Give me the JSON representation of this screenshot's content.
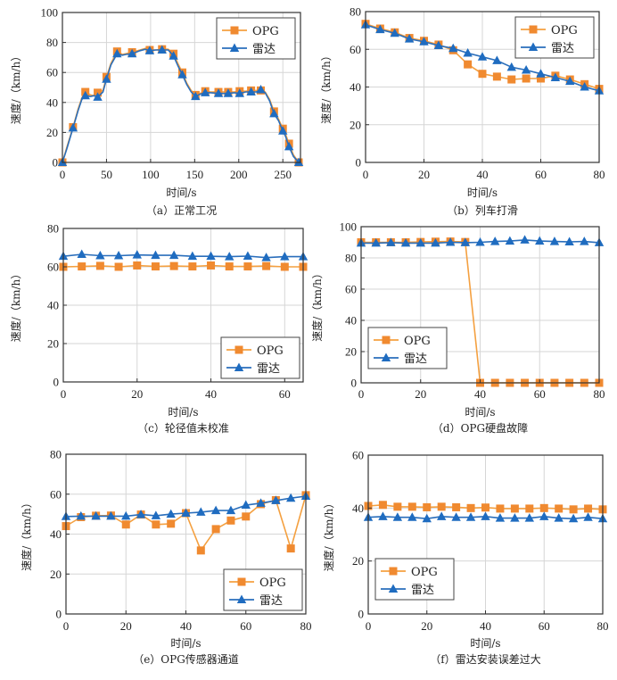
{
  "figure": {
    "series_styles": {
      "OPG": {
        "color": "#f4a040",
        "marker_color": "#f08a30",
        "marker": "square"
      },
      "雷达": {
        "color": "#2a6ebb",
        "marker_color": "#1f6cc0",
        "marker": "triangle"
      }
    },
    "legend_labels": [
      "OPG",
      "雷达"
    ]
  },
  "chart_data": [
    {
      "id": "a",
      "type": "line",
      "caption": "（a）正常工况",
      "xlabel": "时间/s",
      "ylabel": "速度/（km/h）",
      "xlim": [
        0,
        270
      ],
      "ylim": [
        0,
        100
      ],
      "xticks": [
        0,
        50,
        100,
        150,
        200,
        250
      ],
      "yticks": [
        0,
        20,
        40,
        60,
        80,
        100
      ],
      "grid": true,
      "legend": "top-right",
      "series": [
        {
          "name": "OPG",
          "x": [
            0,
            5,
            12,
            18,
            22,
            26,
            32,
            36,
            40,
            46,
            50,
            55,
            62,
            68,
            72,
            79,
            88,
            94,
            99,
            106,
            113,
            120,
            126,
            131,
            136,
            141,
            146,
            151,
            156,
            162,
            168,
            177,
            182,
            188,
            195,
            201,
            208,
            214,
            220,
            225,
            230,
            235,
            240,
            245,
            250,
            253,
            257,
            262,
            268
          ],
          "y": [
            0,
            10,
            23.5,
            36,
            43,
            47,
            45,
            44.5,
            46.5,
            48,
            57,
            66,
            74,
            72,
            72.5,
            73.5,
            75,
            76,
            75,
            75,
            75.5,
            75.5,
            72.5,
            66,
            60,
            53,
            48,
            45,
            46,
            47.5,
            47,
            47,
            47,
            47,
            47,
            47.5,
            47.5,
            48,
            48,
            48,
            47,
            42,
            34,
            29,
            22.5,
            19,
            12.5,
            5,
            0
          ],
          "marker_x": [
            0,
            12,
            26,
            40,
            50,
            62,
            79,
            99,
            113,
            126,
            136,
            151,
            162,
            177,
            188,
            201,
            214,
            225,
            240,
            250,
            257,
            268
          ]
        },
        {
          "name": "雷达",
          "x": [
            0,
            5,
            12,
            18,
            22,
            26,
            32,
            36,
            40,
            46,
            50,
            55,
            62,
            68,
            72,
            79,
            88,
            94,
            99,
            106,
            113,
            120,
            126,
            131,
            136,
            141,
            146,
            151,
            156,
            162,
            168,
            177,
            182,
            188,
            195,
            201,
            208,
            214,
            220,
            225,
            230,
            235,
            240,
            245,
            250,
            253,
            257,
            262,
            268
          ],
          "y": [
            0,
            9,
            23,
            35,
            42,
            44.5,
            44,
            44.5,
            43.5,
            47,
            55.5,
            65,
            72.5,
            71.5,
            72,
            72.5,
            74.5,
            75.5,
            74.5,
            75,
            75,
            75,
            71,
            64.5,
            58.5,
            52,
            47,
            44,
            45.5,
            46.5,
            46.5,
            46,
            46,
            46,
            46.5,
            46,
            47,
            47,
            47,
            48.5,
            46.5,
            41,
            32.5,
            28,
            21,
            17.5,
            10.5,
            4,
            0
          ],
          "marker_x": [
            0,
            12,
            26,
            40,
            50,
            62,
            79,
            99,
            113,
            126,
            136,
            151,
            162,
            177,
            188,
            201,
            214,
            225,
            240,
            250,
            257,
            268
          ]
        }
      ]
    },
    {
      "id": "b",
      "type": "line",
      "caption": "（b）列车打滑",
      "xlabel": "时间/s",
      "ylabel": "速度/（km/h）",
      "xlim": [
        0,
        80
      ],
      "ylim": [
        0,
        80
      ],
      "xticks": [
        0,
        20,
        40,
        60,
        80
      ],
      "yticks": [
        0,
        20,
        40,
        60,
        80
      ],
      "grid": true,
      "legend": "top-right",
      "series": [
        {
          "name": "OPG",
          "x": [
            0,
            5,
            10,
            15,
            20,
            25,
            30,
            35,
            40,
            45,
            50,
            55,
            60,
            65,
            70,
            75,
            80
          ],
          "y": [
            73.5,
            71,
            69,
            66,
            64.5,
            62.5,
            59.5,
            52,
            47,
            45.5,
            44,
            44.5,
            44.5,
            46,
            44,
            41.5,
            39
          ]
        },
        {
          "name": "雷达",
          "x": [
            0,
            5,
            10,
            15,
            20,
            25,
            30,
            35,
            40,
            45,
            50,
            55,
            60,
            65,
            70,
            75,
            80
          ],
          "y": [
            73,
            70.5,
            68.5,
            65.5,
            64,
            62,
            60.5,
            58,
            56,
            54,
            50.5,
            49,
            47,
            45,
            43,
            40,
            38
          ]
        }
      ]
    },
    {
      "id": "c",
      "type": "line",
      "caption": "（c）轮径值未校准",
      "xlabel": "时间/s",
      "ylabel": "速度/（km/h）",
      "xlim": [
        0,
        65
      ],
      "ylim": [
        0,
        80
      ],
      "xticks": [
        0,
        20,
        40,
        60
      ],
      "yticks": [
        0,
        20,
        40,
        60,
        80
      ],
      "grid": true,
      "legend": "bottom-right",
      "series": [
        {
          "name": "OPG",
          "x": [
            0,
            5,
            10,
            15,
            20,
            25,
            30,
            35,
            40,
            45,
            50,
            55,
            60,
            65
          ],
          "y": [
            60,
            60.2,
            60.5,
            60,
            60.7,
            60.2,
            60.4,
            60.2,
            60.7,
            60.2,
            60.2,
            60.4,
            60,
            60
          ]
        },
        {
          "name": "雷达",
          "x": [
            0,
            5,
            10,
            15,
            20,
            25,
            30,
            35,
            40,
            45,
            50,
            55,
            60,
            65
          ],
          "y": [
            65.5,
            66.5,
            65.8,
            65.8,
            66.2,
            66,
            66,
            65.5,
            65.5,
            65.3,
            65.6,
            64.8,
            65.3,
            65.3
          ]
        }
      ]
    },
    {
      "id": "d",
      "type": "line",
      "caption": "（d）OPG硬盘故障",
      "xlabel": "时间/s",
      "ylabel": "速度/（km/h）",
      "xlim": [
        0,
        80
      ],
      "ylim": [
        0,
        100
      ],
      "xticks": [
        0,
        20,
        40,
        60,
        80
      ],
      "yticks": [
        0,
        20,
        40,
        60,
        80,
        100
      ],
      "grid": true,
      "legend": "bottom-left",
      "series": [
        {
          "name": "OPG",
          "x": [
            0,
            5,
            10,
            15,
            20,
            25,
            30,
            35,
            40,
            45,
            50,
            55,
            60,
            65,
            70,
            75,
            80
          ],
          "y": [
            90,
            90,
            90,
            90,
            90.2,
            90.4,
            90.5,
            90.2,
            0,
            0,
            0,
            0,
            0,
            0,
            0,
            0,
            0
          ]
        },
        {
          "name": "雷达",
          "x": [
            0,
            5,
            10,
            15,
            20,
            25,
            30,
            35,
            40,
            45,
            50,
            55,
            60,
            65,
            70,
            75,
            80
          ],
          "y": [
            89.5,
            89.5,
            89.8,
            89.5,
            89.5,
            89.5,
            90,
            89.8,
            90,
            90.5,
            90.8,
            91.5,
            90.8,
            90.5,
            90.3,
            90.5,
            89.8
          ]
        }
      ]
    },
    {
      "id": "e",
      "type": "line",
      "caption": "（e）OPG传感器通道",
      "xlabel": "时间/s",
      "ylabel": "速度/（km/h）",
      "xlim": [
        0,
        80
      ],
      "ylim": [
        0,
        80
      ],
      "xticks": [
        0,
        20,
        40,
        60,
        80
      ],
      "yticks": [
        0,
        20,
        40,
        60,
        80
      ],
      "grid": true,
      "legend": "bottom-right",
      "series": [
        {
          "name": "OPG",
          "x": [
            0,
            5,
            10,
            15,
            20,
            25,
            30,
            35,
            40,
            45,
            50,
            55,
            60,
            65,
            70,
            75,
            80
          ],
          "y": [
            44,
            48.5,
            49.2,
            49.3,
            44.8,
            49.8,
            44.8,
            45.2,
            50.5,
            31.8,
            42.5,
            46.8,
            48.8,
            55,
            57,
            32.8,
            59.5
          ]
        },
        {
          "name": "雷达",
          "x": [
            0,
            5,
            10,
            15,
            20,
            25,
            30,
            35,
            40,
            45,
            50,
            55,
            60,
            65,
            70,
            75,
            80
          ],
          "y": [
            48.8,
            49,
            49,
            49,
            49,
            49.8,
            49.2,
            50,
            50.5,
            51,
            51.8,
            51.8,
            54.5,
            55.5,
            56.8,
            58,
            59
          ]
        }
      ]
    },
    {
      "id": "f",
      "type": "line",
      "caption": "（f）雷达安装误差过大",
      "xlabel": "时间/s",
      "ylabel": "速度/（km/h）",
      "xlim": [
        0,
        80
      ],
      "ylim": [
        0,
        60
      ],
      "xticks": [
        0,
        20,
        40,
        60,
        80
      ],
      "yticks": [
        0,
        20,
        40,
        60
      ],
      "grid": true,
      "legend": "bottom-left",
      "series": [
        {
          "name": "OPG",
          "x": [
            0,
            5,
            10,
            15,
            20,
            25,
            30,
            35,
            40,
            45,
            50,
            55,
            60,
            65,
            70,
            75,
            80
          ],
          "y": [
            40.8,
            41.2,
            40.5,
            40.5,
            40.3,
            40.5,
            40.3,
            40,
            40.2,
            39.8,
            39.8,
            39.8,
            40,
            39.8,
            39.5,
            39.8,
            39.5
          ]
        },
        {
          "name": "雷达",
          "x": [
            0,
            5,
            10,
            15,
            20,
            25,
            30,
            35,
            40,
            45,
            50,
            55,
            60,
            65,
            70,
            75,
            80
          ],
          "y": [
            36.5,
            36.8,
            36.5,
            36.5,
            36,
            36.8,
            36.5,
            36.5,
            36.8,
            36.2,
            36.2,
            36.2,
            36.8,
            36.2,
            36,
            36.5,
            36
          ]
        }
      ]
    }
  ]
}
